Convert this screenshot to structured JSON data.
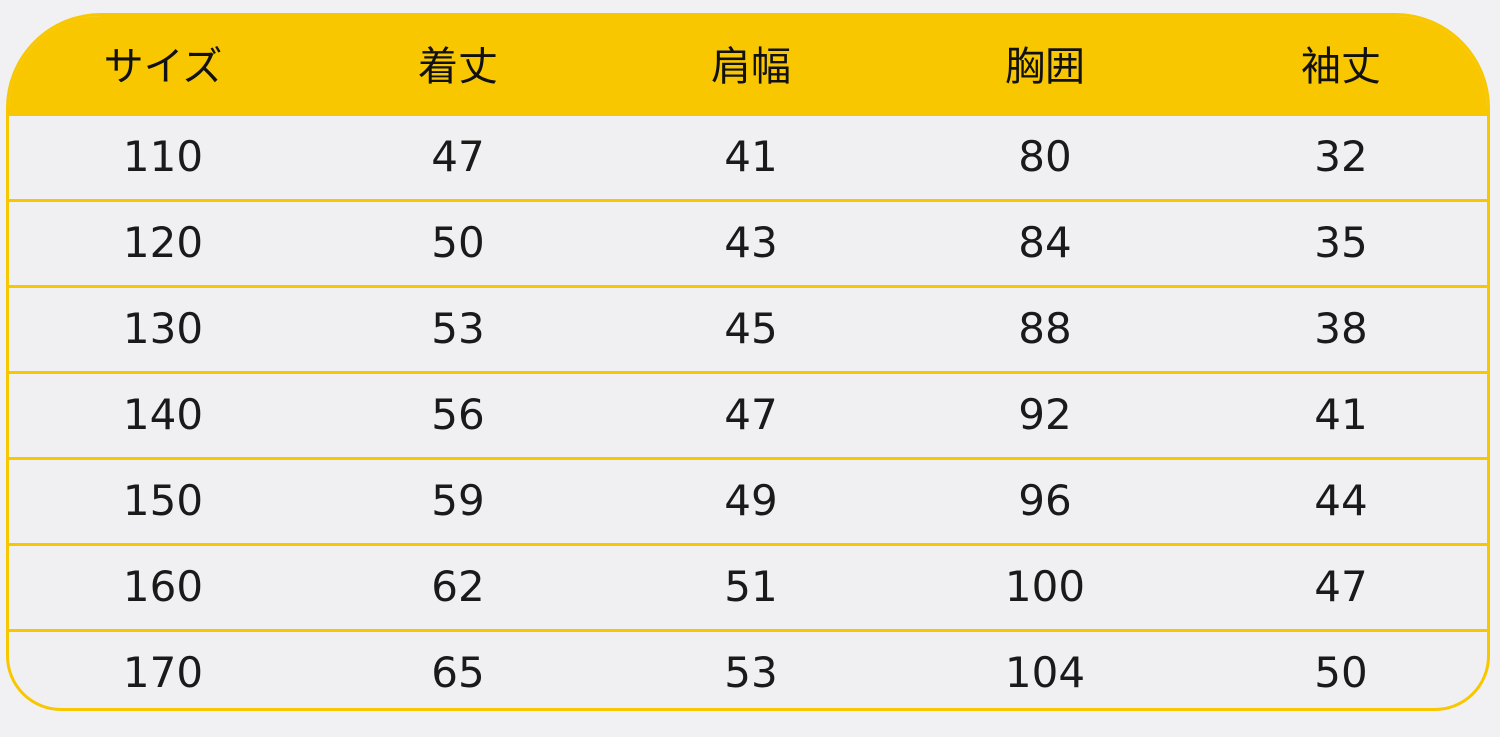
{
  "colors": {
    "accent": "#f8c700",
    "background": "#f0f0f2"
  },
  "table": {
    "headers": [
      "サイズ",
      "着丈",
      "肩幅",
      "胸囲",
      "袖丈"
    ],
    "rows": [
      [
        "110",
        "47",
        "41",
        "80",
        "32"
      ],
      [
        "120",
        "50",
        "43",
        "84",
        "35"
      ],
      [
        "130",
        "53",
        "45",
        "88",
        "38"
      ],
      [
        "140",
        "56",
        "47",
        "92",
        "41"
      ],
      [
        "150",
        "59",
        "49",
        "96",
        "44"
      ],
      [
        "160",
        "62",
        "51",
        "100",
        "47"
      ],
      [
        "170",
        "65",
        "53",
        "104",
        "50"
      ]
    ]
  }
}
